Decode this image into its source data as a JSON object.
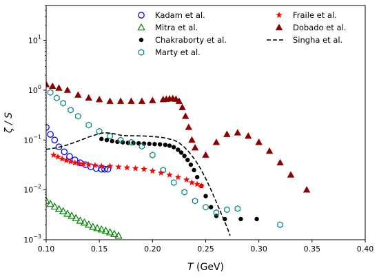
{
  "chart_data": {
    "type": "scatter",
    "title": "",
    "xlabel": "T (GeV)",
    "xlabel_parts": {
      "symbol": "T",
      "unit": " (GeV)"
    },
    "ylabel": "ζ / S",
    "xlim": [
      0.1,
      0.4
    ],
    "ylim": [
      0.001,
      50
    ],
    "yscale": "log",
    "grid": false,
    "legend_position": "top-right",
    "x_ticks": [
      0.1,
      0.15,
      0.2,
      0.25,
      0.3,
      0.35,
      0.4
    ],
    "x_tick_labels": [
      "0.10",
      "0.15",
      "0.20",
      "0.25",
      "0.30",
      "0.35",
      "0.40"
    ],
    "y_ticks": [
      {
        "value": 0.001,
        "base": "10",
        "exp": "−3"
      },
      {
        "value": 0.01,
        "base": "10",
        "exp": "−2"
      },
      {
        "value": 0.1,
        "base": "10",
        "exp": "−1"
      },
      {
        "value": 1,
        "base": "10",
        "exp": "0"
      },
      {
        "value": 10,
        "base": "10",
        "exp": "1"
      }
    ],
    "series": [
      {
        "name": "Kadam et al.",
        "marker": "circle-open",
        "color": "#0000ff",
        "x": [
          0.1,
          0.104,
          0.108,
          0.112,
          0.117,
          0.122,
          0.127,
          0.132,
          0.137,
          0.142,
          0.147,
          0.152,
          0.155,
          0.158
        ],
        "y": [
          0.18,
          0.13,
          0.1,
          0.073,
          0.058,
          0.047,
          0.04,
          0.035,
          0.032,
          0.029,
          0.027,
          0.026,
          0.026,
          0.026
        ]
      },
      {
        "name": "Mitra et al.",
        "marker": "triangle-open",
        "color": "#008000",
        "x": [
          0.1,
          0.104,
          0.108,
          0.112,
          0.116,
          0.12,
          0.124,
          0.128,
          0.132,
          0.136,
          0.14,
          0.144,
          0.148,
          0.152,
          0.156,
          0.16,
          0.164,
          0.168
        ],
        "y": [
          0.006,
          0.0052,
          0.0046,
          0.0041,
          0.0037,
          0.0033,
          0.003,
          0.0027,
          0.0024,
          0.0022,
          0.002,
          0.0018,
          0.0017,
          0.0016,
          0.0015,
          0.0014,
          0.0013,
          0.0012
        ]
      },
      {
        "name": "Chakraborty et al.",
        "marker": "circle-filled",
        "color": "#000000",
        "x": [
          0.152,
          0.157,
          0.162,
          0.167,
          0.172,
          0.177,
          0.182,
          0.187,
          0.192,
          0.197,
          0.202,
          0.207,
          0.212,
          0.216,
          0.22,
          0.224,
          0.227,
          0.23,
          0.233,
          0.236,
          0.239,
          0.242,
          0.246,
          0.25,
          0.255,
          0.26,
          0.268,
          0.283,
          0.298
        ],
        "y": [
          0.105,
          0.1,
          0.095,
          0.092,
          0.09,
          0.088,
          0.087,
          0.086,
          0.085,
          0.084,
          0.083,
          0.082,
          0.08,
          0.077,
          0.072,
          0.064,
          0.056,
          0.048,
          0.04,
          0.032,
          0.025,
          0.018,
          0.012,
          0.0075,
          0.0045,
          0.003,
          0.0026,
          0.0026,
          0.0026
        ]
      },
      {
        "name": "Marty et al.",
        "marker": "hexagon-open",
        "color": "#008080",
        "x": [
          0.104,
          0.11,
          0.116,
          0.123,
          0.13,
          0.14,
          0.15,
          0.16,
          0.17,
          0.18,
          0.19,
          0.2,
          0.21,
          0.22,
          0.23,
          0.24,
          0.25,
          0.26,
          0.27,
          0.28,
          0.32
        ],
        "y": [
          0.9,
          0.7,
          0.55,
          0.4,
          0.3,
          0.2,
          0.15,
          0.12,
          0.1,
          0.09,
          0.075,
          0.05,
          0.025,
          0.014,
          0.009,
          0.006,
          0.0045,
          0.0035,
          0.004,
          0.0042,
          0.002
        ]
      },
      {
        "name": "Fraile et al.",
        "marker": "star",
        "color": "#ff0000",
        "x": [
          0.107,
          0.111,
          0.115,
          0.119,
          0.123,
          0.127,
          0.131,
          0.135,
          0.14,
          0.146,
          0.152,
          0.16,
          0.168,
          0.176,
          0.184,
          0.192,
          0.2,
          0.208,
          0.216,
          0.224,
          0.232,
          0.237,
          0.242,
          0.246
        ],
        "y": [
          0.05,
          0.046,
          0.042,
          0.039,
          0.037,
          0.035,
          0.034,
          0.033,
          0.032,
          0.031,
          0.03,
          0.03,
          0.029,
          0.028,
          0.027,
          0.026,
          0.024,
          0.022,
          0.02,
          0.018,
          0.016,
          0.014,
          0.013,
          0.012
        ]
      },
      {
        "name": "Dobado et al.",
        "marker": "triangle-filled",
        "color": "#8b0000",
        "x": [
          0.1,
          0.106,
          0.112,
          0.12,
          0.13,
          0.14,
          0.15,
          0.16,
          0.17,
          0.18,
          0.19,
          0.2,
          0.21,
          0.213,
          0.216,
          0.219,
          0.222,
          0.225,
          0.228,
          0.231,
          0.234,
          0.237,
          0.24,
          0.25,
          0.26,
          0.27,
          0.28,
          0.29,
          0.3,
          0.31,
          0.32,
          0.33,
          0.345
        ],
        "y": [
          1.3,
          1.2,
          1.1,
          1.0,
          0.8,
          0.7,
          0.65,
          0.6,
          0.6,
          0.6,
          0.6,
          0.62,
          0.65,
          0.66,
          0.67,
          0.68,
          0.66,
          0.6,
          0.45,
          0.3,
          0.18,
          0.1,
          0.07,
          0.05,
          0.09,
          0.13,
          0.14,
          0.12,
          0.09,
          0.06,
          0.035,
          0.02,
          0.01
        ]
      },
      {
        "name": "Singha et al.",
        "marker": "dashed-line",
        "color": "#000000",
        "x": [
          0.1,
          0.11,
          0.12,
          0.13,
          0.14,
          0.15,
          0.155,
          0.16,
          0.165,
          0.17,
          0.175,
          0.18,
          0.19,
          0.2,
          0.21,
          0.22,
          0.225,
          0.23,
          0.235,
          0.24,
          0.245,
          0.25,
          0.255,
          0.26,
          0.265,
          0.27,
          0.273
        ],
        "y": [
          0.065,
          0.07,
          0.08,
          0.095,
          0.115,
          0.135,
          0.14,
          0.138,
          0.132,
          0.125,
          0.122,
          0.122,
          0.121,
          0.118,
          0.112,
          0.1,
          0.088,
          0.072,
          0.055,
          0.04,
          0.027,
          0.017,
          0.01,
          0.0057,
          0.0032,
          0.0018,
          0.0012
        ]
      }
    ]
  }
}
